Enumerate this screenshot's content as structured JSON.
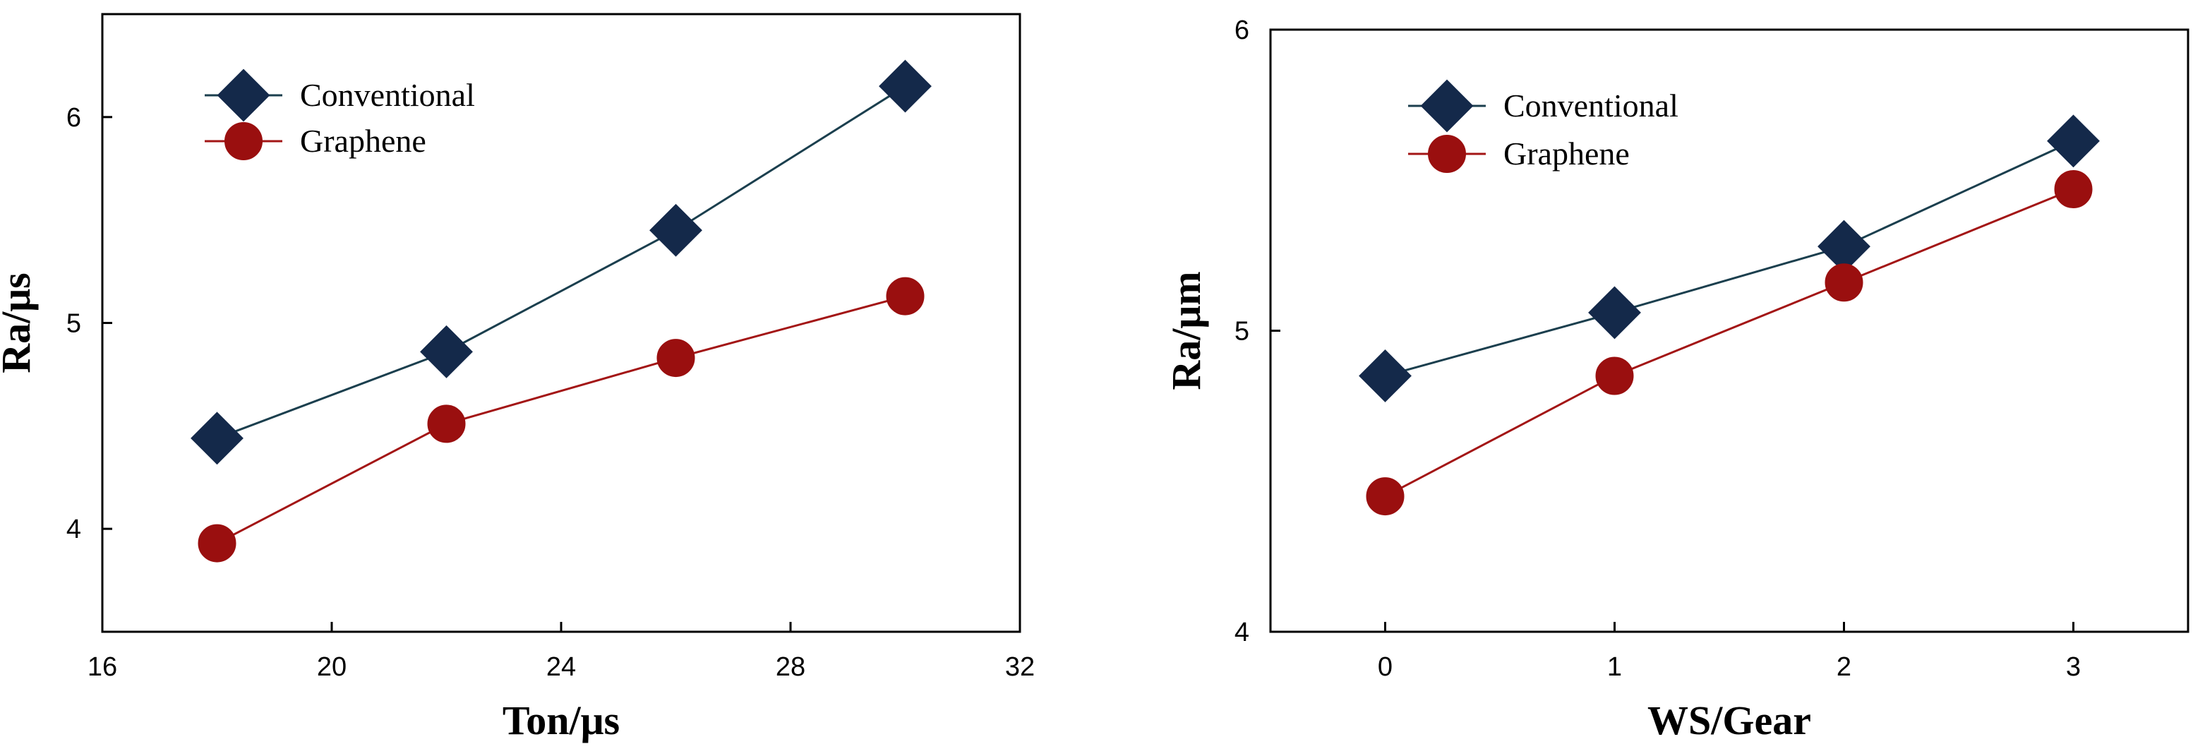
{
  "colors": {
    "conventional": "#14294a",
    "conventional_line": "#1b3f4e",
    "graphene": "#9a0f0f",
    "graphene_line": "#a31515",
    "axis": "#000000"
  },
  "chart_data": [
    {
      "type": "line",
      "title": "",
      "xlabel": "Ton/μs",
      "ylabel": "Ra/μs",
      "xlim": [
        16,
        32
      ],
      "ylim": [
        3.5,
        6.5
      ],
      "xticks": [
        16,
        20,
        24,
        28,
        32
      ],
      "yticks": [
        4,
        5,
        6
      ],
      "grid": false,
      "legend_position": "top-left",
      "x": [
        18,
        22,
        26,
        30
      ],
      "series": [
        {
          "name": "Conventional",
          "marker": "diamond",
          "values": [
            4.44,
            4.86,
            5.45,
            6.15
          ]
        },
        {
          "name": "Graphene",
          "marker": "circle",
          "values": [
            3.93,
            4.51,
            4.83,
            5.13
          ]
        }
      ]
    },
    {
      "type": "line",
      "title": "",
      "xlabel": "WS/Gear",
      "ylabel": "Ra/μm",
      "xlim": [
        -0.5,
        3.5
      ],
      "ylim": [
        4,
        6
      ],
      "xticks": [
        0,
        1,
        2,
        3
      ],
      "yticks": [
        4,
        5,
        6
      ],
      "grid": false,
      "legend_position": "top-left",
      "x": [
        0,
        1,
        2,
        3
      ],
      "series": [
        {
          "name": "Conventional",
          "marker": "diamond",
          "values": [
            4.85,
            5.06,
            5.28,
            5.63
          ]
        },
        {
          "name": "Graphene",
          "marker": "circle",
          "values": [
            4.45,
            4.85,
            5.16,
            5.47
          ]
        }
      ]
    }
  ]
}
